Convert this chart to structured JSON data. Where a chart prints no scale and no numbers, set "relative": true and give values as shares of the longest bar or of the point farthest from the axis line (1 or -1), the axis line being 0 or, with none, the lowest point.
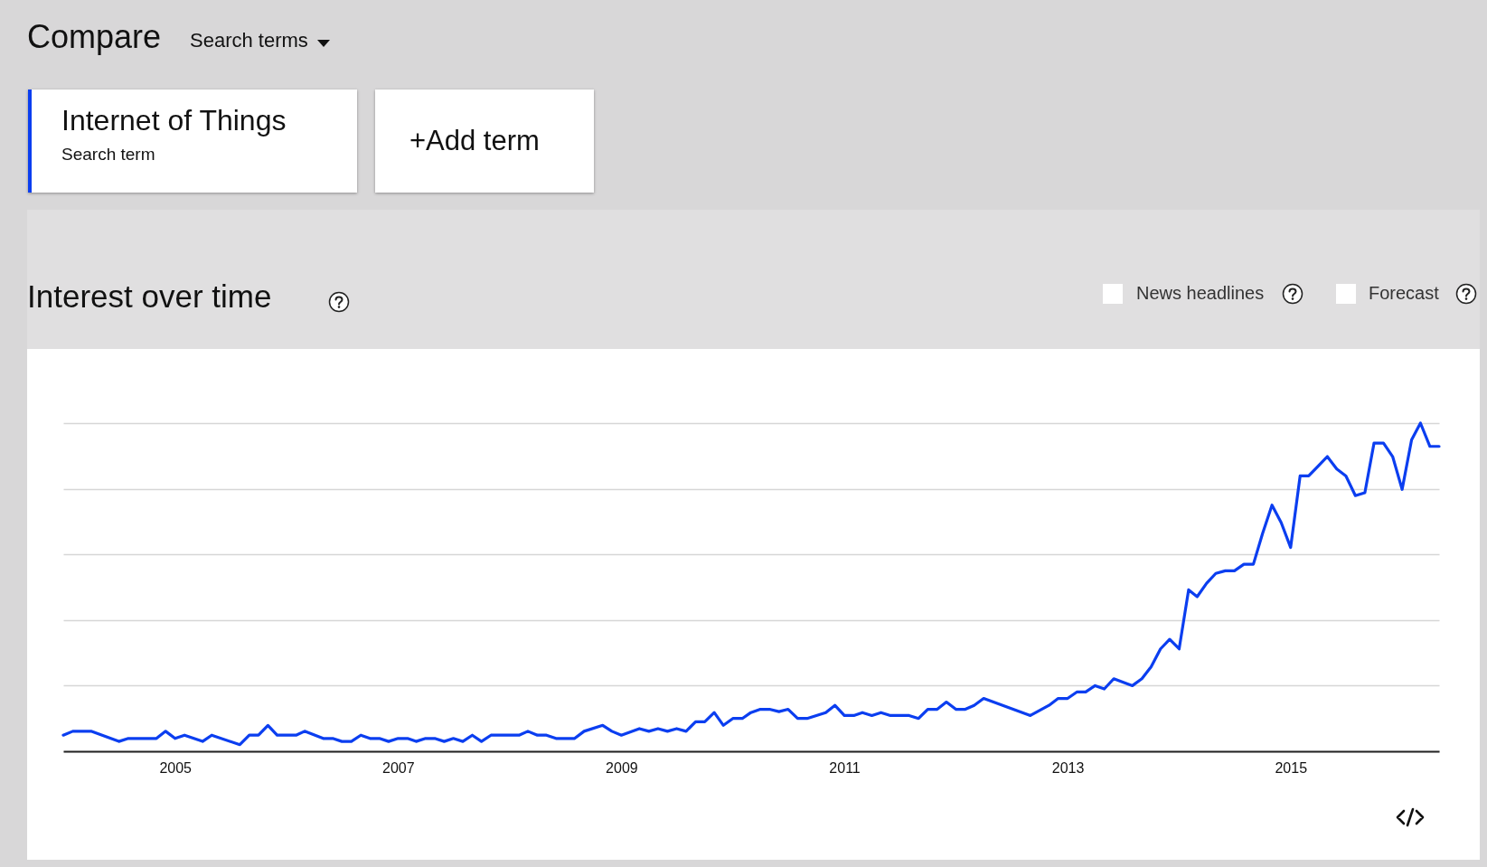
{
  "chart_data": {
    "type": "line",
    "title": "Interest over time",
    "annotations": [
      "Compare",
      "Search terms",
      "Search term",
      "+Add term",
      "News headlines",
      "Forecast"
    ],
    "relative": true,
    "grid": "y",
    "legend": "top left",
    "marker": "none",
    "line_style": "solid",
    "xlim": [
      "2004-01",
      "2016-05"
    ],
    "xticks": [
      "2005",
      "2007",
      "2009",
      "2011",
      "2013",
      "2015"
    ],
    "x": [
      "2004-01",
      "2004-02",
      "2004-04",
      "2004-07",
      "2004-08",
      "2004-11",
      "2004-12",
      "2005-01",
      "2005-02",
      "2005-04",
      "2005-05",
      "2005-08",
      "2005-09",
      "2005-10",
      "2005-11",
      "2005-12",
      "2006-02",
      "2006-03",
      "2006-05",
      "2006-06",
      "2006-07",
      "2006-08",
      "2006-09",
      "2006-10",
      "2006-11",
      "2006-12",
      "2007-01",
      "2007-02",
      "2007-03",
      "2007-04",
      "2007-05",
      "2007-06",
      "2007-07",
      "2007-08",
      "2007-09",
      "2007-10",
      "2007-11",
      "2008-02",
      "2008-03",
      "2008-04",
      "2008-05",
      "2008-06",
      "2008-08",
      "2008-09",
      "2008-11",
      "2008-12",
      "2009-01",
      "2009-03",
      "2009-04",
      "2009-05",
      "2009-06",
      "2009-07",
      "2009-08",
      "2009-09",
      "2009-10",
      "2009-11",
      "2009-12",
      "2010-01",
      "2010-02",
      "2010-03",
      "2010-04",
      "2010-05",
      "2010-06",
      "2010-07",
      "2010-08",
      "2010-09",
      "2010-11",
      "2010-12",
      "2011-01",
      "2011-02",
      "2011-03",
      "2011-04",
      "2011-05",
      "2011-06",
      "2011-08",
      "2011-09",
      "2011-10",
      "2011-11",
      "2011-12",
      "2012-01",
      "2012-02",
      "2012-03",
      "2012-04",
      "2012-09",
      "2012-11",
      "2012-12",
      "2013-01",
      "2013-02",
      "2013-03",
      "2013-04",
      "2013-05",
      "2013-06",
      "2013-08",
      "2013-09",
      "2013-10",
      "2013-11",
      "2013-12",
      "2014-01",
      "2014-02",
      "2014-03",
      "2014-04",
      "2014-05",
      "2014-06",
      "2014-07",
      "2014-08",
      "2014-09",
      "2014-10",
      "2014-11",
      "2014-12",
      "2015-01",
      "2015-02",
      "2015-03",
      "2015-04",
      "2015-05",
      "2015-06",
      "2015-07",
      "2015-08",
      "2015-09",
      "2015-10",
      "2015-11",
      "2015-12",
      "2016-01",
      "2016-02",
      "2016-03",
      "2016-04",
      "2016-05"
    ],
    "series": [
      {
        "name": "Internet of Things",
        "color": "#0b3ef0",
        "values": [
          0.049,
          0.061,
          0.061,
          0.03,
          0.039,
          0.039,
          0.061,
          0.039,
          0.049,
          0.03,
          0.049,
          0.02,
          0.049,
          0.049,
          0.079,
          0.049,
          0.049,
          0.061,
          0.039,
          0.039,
          0.03,
          0.03,
          0.049,
          0.039,
          0.039,
          0.03,
          0.039,
          0.039,
          0.03,
          0.039,
          0.039,
          0.03,
          0.039,
          0.03,
          0.049,
          0.03,
          0.049,
          0.049,
          0.061,
          0.049,
          0.049,
          0.039,
          0.039,
          0.061,
          0.079,
          0.061,
          0.049,
          0.069,
          0.061,
          0.069,
          0.061,
          0.069,
          0.061,
          0.09,
          0.09,
          0.118,
          0.079,
          0.1,
          0.1,
          0.118,
          0.128,
          0.128,
          0.121,
          0.128,
          0.1,
          0.1,
          0.118,
          0.14,
          0.109,
          0.109,
          0.118,
          0.109,
          0.118,
          0.109,
          0.109,
          0.1,
          0.128,
          0.128,
          0.15,
          0.128,
          0.128,
          0.14,
          0.161,
          0.109,
          0.14,
          0.161,
          0.161,
          0.181,
          0.181,
          0.2,
          0.19,
          0.221,
          0.2,
          0.221,
          0.257,
          0.312,
          0.341,
          0.312,
          0.492,
          0.471,
          0.512,
          0.542,
          0.55,
          0.55,
          0.57,
          0.57,
          0.663,
          0.75,
          0.697,
          0.621,
          0.839,
          0.839,
          0.869,
          0.898,
          0.86,
          0.839,
          0.779,
          0.788,
          0.939,
          0.939,
          0.898,
          0.798,
          0.949,
          1.0,
          0.929,
          0.929
        ]
      }
    ]
  }
}
